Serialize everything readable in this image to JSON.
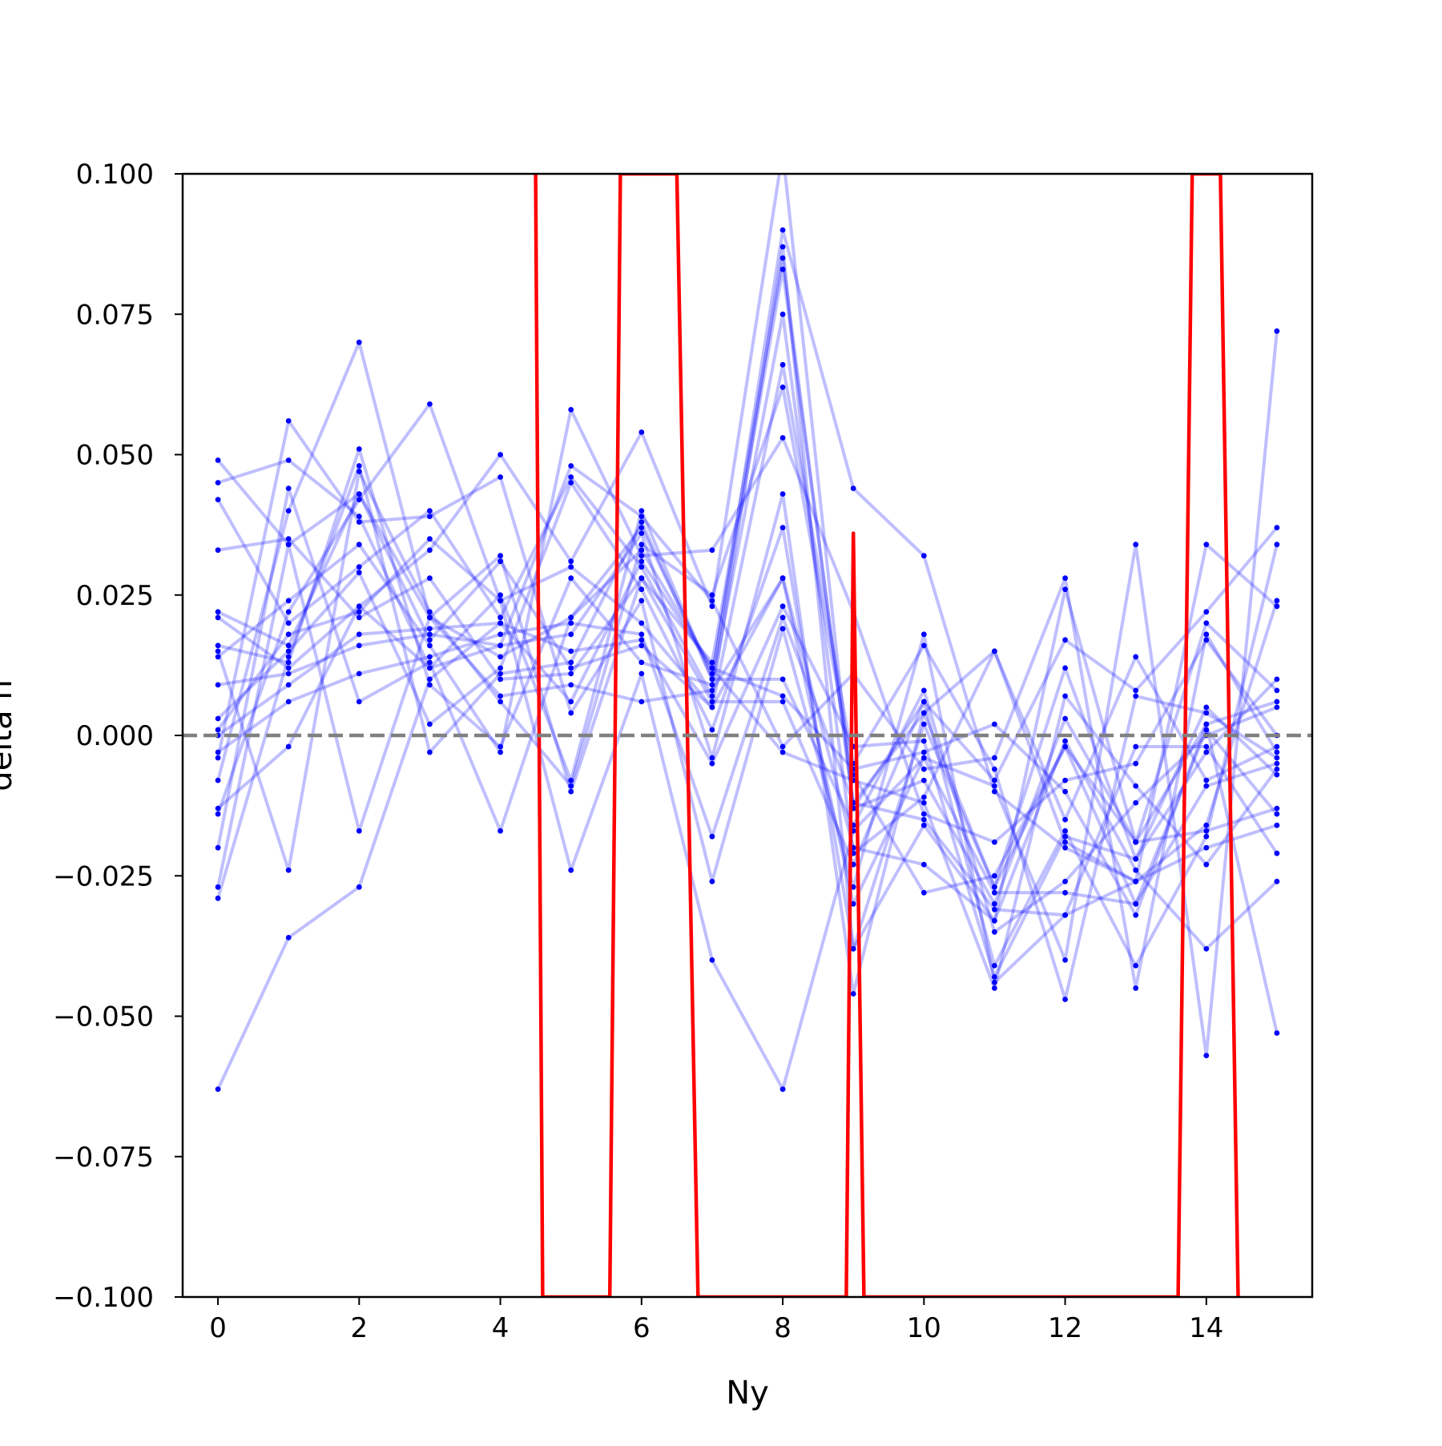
{
  "chart_data": {
    "type": "line",
    "title": "",
    "xlabel": "Ny",
    "ylabel": "delta n",
    "xlim": [
      -0.5,
      15.5
    ],
    "ylim": [
      -0.1,
      0.1
    ],
    "xticks": [
      0,
      2,
      4,
      6,
      8,
      10,
      12,
      14
    ],
    "xtick_labels": [
      "0",
      "2",
      "4",
      "6",
      "8",
      "10",
      "12",
      "14"
    ],
    "yticks": [
      -0.1,
      -0.075,
      -0.05,
      -0.025,
      0.0,
      0.025,
      0.05,
      0.075,
      0.1
    ],
    "ytick_labels": [
      "−0.100",
      "−0.075",
      "−0.050",
      "−0.025",
      "0.000",
      "0.025",
      "0.050",
      "0.075",
      "0.100"
    ],
    "grid": false,
    "legend": "none",
    "x": [
      0,
      1,
      2,
      3,
      4,
      5,
      6,
      7,
      8,
      9,
      10,
      11,
      12,
      13,
      14,
      15
    ],
    "series": [
      {
        "values": [
          0.049,
          0.034,
          0.043,
          0.021,
          0.014,
          0.021,
          0.037,
          0.011,
          0.083,
          -0.012,
          0.004,
          -0.027,
          -0.002,
          -0.019,
          0.002,
          0.006
        ]
      },
      {
        "values": [
          0.045,
          0.049,
          0.039,
          0.012,
          0.025,
          -0.008,
          0.04,
          0.01,
          0.09,
          0.044,
          0.032,
          -0.01,
          -0.02,
          -0.026,
          -0.016,
          0.024
        ]
      },
      {
        "values": [
          0.042,
          0.02,
          0.03,
          0.04,
          0.021,
          0.046,
          0.03,
          0.007,
          0.087,
          -0.038,
          -0.016,
          -0.033,
          0.026,
          -0.019,
          0.02,
          0.008
        ]
      },
      {
        "values": [
          0.033,
          0.035,
          0.021,
          0.028,
          0.01,
          0.011,
          0.028,
          0.013,
          0.085,
          -0.013,
          0.006,
          -0.041,
          -0.017,
          -0.041,
          -0.018,
          0.034
        ]
      },
      {
        "values": [
          0.022,
          0.016,
          0.043,
          0.017,
          0.031,
          0.012,
          0.016,
          0.005,
          0.066,
          -0.005,
          0.016,
          -0.006,
          -0.047,
          0.007,
          0.004,
          -0.004
        ]
      },
      {
        "values": [
          0.021,
          0.012,
          0.023,
          0.033,
          0.05,
          0.031,
          0.054,
          0.023,
          0.104,
          -0.013,
          -0.008,
          -0.03,
          0.003,
          -0.019,
          -0.017,
          -0.013
        ]
      },
      {
        "values": [
          0.016,
          0.013,
          0.051,
          0.009,
          -0.002,
          0.028,
          0.013,
          0.009,
          0.075,
          -0.021,
          -0.011,
          0.015,
          -0.019,
          -0.026,
          -0.02,
          -0.016
        ]
      },
      {
        "values": [
          0.015,
          -0.024,
          0.047,
          0.022,
          0.006,
          -0.009,
          0.034,
          0.025,
          0.062,
          -0.007,
          -0.028,
          -0.025,
          -0.002,
          -0.03,
          -0.009,
          -0.005
        ]
      },
      {
        "values": [
          0.014,
          0.024,
          0.034,
          0.016,
          -0.003,
          0.058,
          0.032,
          0.033,
          0.053,
          0.022,
          -0.014,
          -0.019,
          -0.008,
          -0.005,
          0.017,
          0.0
        ]
      },
      {
        "values": [
          0.009,
          0.011,
          0.016,
          0.018,
          0.016,
          0.018,
          0.036,
          -0.004,
          0.043,
          -0.046,
          0.004,
          0.015,
          -0.015,
          0.014,
          -0.008,
          -0.002
        ]
      },
      {
        "values": [
          0.003,
          0.015,
          0.029,
          0.002,
          0.012,
          0.045,
          0.026,
          0.001,
          0.037,
          -0.038,
          0.002,
          -0.027,
          0.012,
          -0.022,
          0.005,
          -0.007
        ]
      },
      {
        "values": [
          0.001,
          0.018,
          0.022,
          0.035,
          0.024,
          0.03,
          0.02,
          0.005,
          0.028,
          -0.03,
          -0.004,
          -0.028,
          -0.028,
          -0.03,
          0.001,
          -0.014
        ]
      },
      {
        "values": [
          0.0,
          0.009,
          0.018,
          0.019,
          0.02,
          0.015,
          0.017,
          -0.005,
          0.023,
          -0.002,
          -0.001,
          -0.043,
          -0.018,
          -0.022,
          -0.003,
          0.01
        ]
      },
      {
        "values": [
          -0.003,
          0.006,
          0.011,
          0.014,
          0.018,
          0.02,
          0.018,
          -0.018,
          0.021,
          -0.012,
          -0.015,
          -0.031,
          -0.032,
          -0.002,
          -0.002,
          -0.021
        ]
      },
      {
        "values": [
          -0.004,
          0.056,
          0.038,
          0.039,
          0.046,
          0.004,
          0.024,
          -0.026,
          0.019,
          -0.027,
          0.018,
          -0.044,
          -0.032,
          -0.026,
          0.034,
          0.023
        ]
      },
      {
        "values": [
          -0.008,
          0.04,
          0.07,
          0.021,
          0.032,
          -0.01,
          0.028,
          0.006,
          0.006,
          -0.023,
          0.006,
          -0.008,
          0.017,
          0.008,
          0.022,
          0.037
        ]
      },
      {
        "values": [
          -0.013,
          -0.002,
          0.023,
          0.012,
          0.016,
          0.048,
          0.039,
          0.024,
          -0.002,
          0.011,
          -0.006,
          -0.004,
          0.028,
          -0.045,
          0.018,
          -0.003
        ]
      },
      {
        "values": [
          -0.014,
          0.022,
          0.042,
          0.059,
          0.024,
          -0.024,
          0.011,
          -0.04,
          -0.063,
          -0.017,
          -0.004,
          -0.009,
          -0.04,
          0.034,
          -0.057,
          0.072
        ]
      },
      {
        "values": [
          -0.02,
          0.044,
          0.006,
          0.013,
          -0.017,
          0.021,
          0.033,
          0.012,
          -0.003,
          -0.008,
          -0.012,
          -0.045,
          0.007,
          -0.009,
          -0.023,
          -0.006
        ]
      },
      {
        "values": [
          -0.027,
          0.034,
          -0.017,
          0.021,
          0.007,
          0.009,
          0.006,
          0.008,
          0.028,
          -0.02,
          -0.023,
          -0.033,
          -0.001,
          -0.024,
          -0.038,
          -0.026
        ]
      },
      {
        "values": [
          -0.029,
          0.014,
          0.048,
          -0.003,
          0.011,
          0.013,
          0.038,
          0.01,
          0.01,
          -0.016,
          0.008,
          -0.035,
          -0.026,
          -0.012,
          0.0,
          0.005
        ]
      },
      {
        "values": [
          -0.063,
          -0.036,
          -0.027,
          0.01,
          0.02,
          0.006,
          0.031,
          0.012,
          0.007,
          -0.006,
          -0.003,
          0.002,
          -0.01,
          -0.032,
          0.002,
          -0.053
        ]
      }
    ],
    "red_series": {
      "x": [
        4.5,
        4.6,
        5.55,
        5.7,
        6.5,
        6.8,
        8.9,
        9.0,
        9.15,
        13.6,
        13.8,
        14.2,
        14.45
      ],
      "values": [
        0.1,
        -0.1,
        -0.1,
        0.1,
        0.1,
        -0.1,
        -0.1,
        0.036,
        -0.1,
        -0.1,
        0.1,
        0.1,
        -0.1
      ]
    },
    "reference_line": {
      "y": 0.0,
      "style": "dashed"
    },
    "colors": {
      "series": "#0000ff",
      "red": "#ff0000",
      "reference": "#808080"
    }
  }
}
